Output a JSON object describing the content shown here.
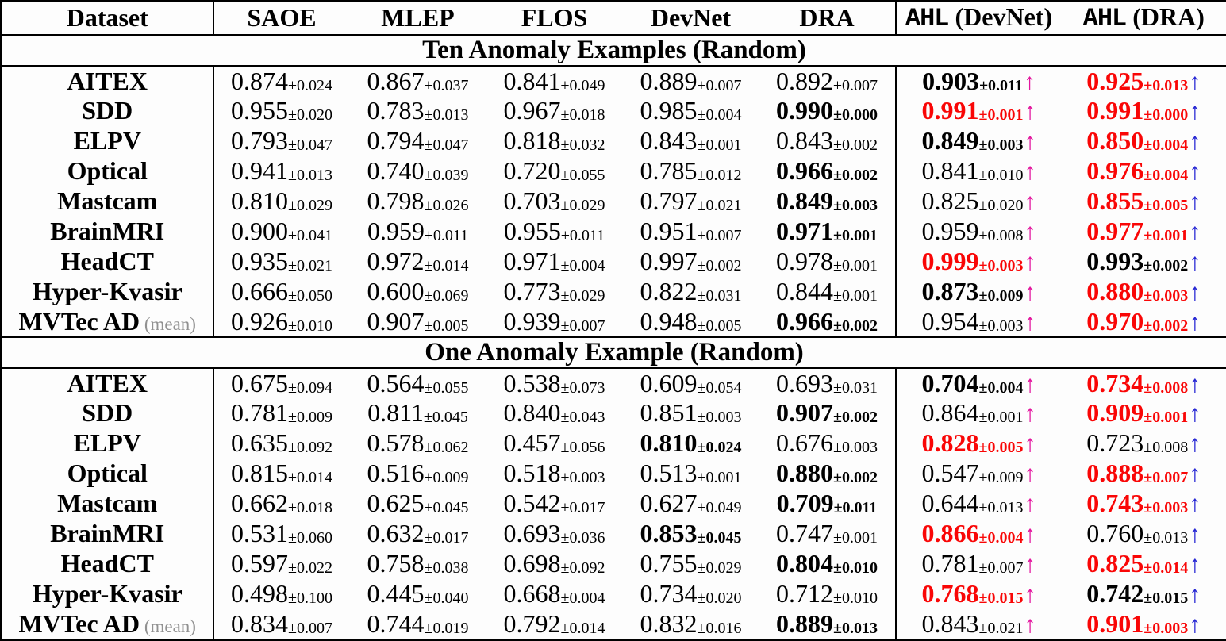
{
  "colors": {
    "red": "#f90606",
    "magenta": "#e3169e",
    "blue": "#2727d4"
  },
  "arrow_glyph": "↑",
  "header": {
    "columns": [
      {
        "label": "Dataset"
      },
      {
        "label": "SAOE"
      },
      {
        "label": "MLEP"
      },
      {
        "label": "FLOS"
      },
      {
        "label": "DevNet"
      },
      {
        "label": "DRA"
      },
      {
        "mono": "AHL",
        "label": " (DevNet)"
      },
      {
        "mono": "AHL",
        "label": " (DRA)"
      }
    ]
  },
  "sections": [
    {
      "title": "Ten Anomaly Examples (Random)",
      "rows": [
        {
          "dataset": "AITEX",
          "suffix": "",
          "cells": [
            {
              "v": "0.874",
              "pm": "±0.024",
              "s": "n",
              "a": ""
            },
            {
              "v": "0.867",
              "pm": "±0.037",
              "s": "n",
              "a": ""
            },
            {
              "v": "0.841",
              "pm": "±0.049",
              "s": "n",
              "a": ""
            },
            {
              "v": "0.889",
              "pm": "±0.007",
              "s": "n",
              "a": ""
            },
            {
              "v": "0.892",
              "pm": "±0.007",
              "s": "n",
              "a": ""
            },
            {
              "v": "0.903",
              "pm": "±0.011",
              "s": "b",
              "a": "m"
            },
            {
              "v": "0.925",
              "pm": "±0.013",
              "s": "r",
              "a": "bl"
            }
          ]
        },
        {
          "dataset": "SDD",
          "suffix": "",
          "cells": [
            {
              "v": "0.955",
              "pm": "±0.020",
              "s": "n",
              "a": ""
            },
            {
              "v": "0.783",
              "pm": "±0.013",
              "s": "n",
              "a": ""
            },
            {
              "v": "0.967",
              "pm": "±0.018",
              "s": "n",
              "a": ""
            },
            {
              "v": "0.985",
              "pm": "±0.004",
              "s": "n",
              "a": ""
            },
            {
              "v": "0.990",
              "pm": "±0.000",
              "s": "b",
              "a": ""
            },
            {
              "v": "0.991",
              "pm": "±0.001",
              "s": "r",
              "a": "m"
            },
            {
              "v": "0.991",
              "pm": "±0.000",
              "s": "r",
              "a": "bl"
            }
          ]
        },
        {
          "dataset": "ELPV",
          "suffix": "",
          "cells": [
            {
              "v": "0.793",
              "pm": "±0.047",
              "s": "n",
              "a": ""
            },
            {
              "v": "0.794",
              "pm": "±0.047",
              "s": "n",
              "a": ""
            },
            {
              "v": "0.818",
              "pm": "±0.032",
              "s": "n",
              "a": ""
            },
            {
              "v": "0.843",
              "pm": "±0.001",
              "s": "n",
              "a": ""
            },
            {
              "v": "0.843",
              "pm": "±0.002",
              "s": "n",
              "a": ""
            },
            {
              "v": "0.849",
              "pm": "±0.003",
              "s": "b",
              "a": "m"
            },
            {
              "v": "0.850",
              "pm": "±0.004",
              "s": "r",
              "a": "bl"
            }
          ]
        },
        {
          "dataset": "Optical",
          "suffix": "",
          "cells": [
            {
              "v": "0.941",
              "pm": "±0.013",
              "s": "n",
              "a": ""
            },
            {
              "v": "0.740",
              "pm": "±0.039",
              "s": "n",
              "a": ""
            },
            {
              "v": "0.720",
              "pm": "±0.055",
              "s": "n",
              "a": ""
            },
            {
              "v": "0.785",
              "pm": "±0.012",
              "s": "n",
              "a": ""
            },
            {
              "v": "0.966",
              "pm": "±0.002",
              "s": "b",
              "a": ""
            },
            {
              "v": "0.841",
              "pm": "±0.010",
              "s": "n",
              "a": "m"
            },
            {
              "v": "0.976",
              "pm": "±0.004",
              "s": "r",
              "a": "bl"
            }
          ]
        },
        {
          "dataset": "Mastcam",
          "suffix": "",
          "cells": [
            {
              "v": "0.810",
              "pm": "±0.029",
              "s": "n",
              "a": ""
            },
            {
              "v": "0.798",
              "pm": "±0.026",
              "s": "n",
              "a": ""
            },
            {
              "v": "0.703",
              "pm": "±0.029",
              "s": "n",
              "a": ""
            },
            {
              "v": "0.797",
              "pm": "±0.021",
              "s": "n",
              "a": ""
            },
            {
              "v": "0.849",
              "pm": "±0.003",
              "s": "b",
              "a": ""
            },
            {
              "v": "0.825",
              "pm": "±0.020",
              "s": "n",
              "a": "m"
            },
            {
              "v": "0.855",
              "pm": "±0.005",
              "s": "r",
              "a": "bl"
            }
          ]
        },
        {
          "dataset": "BrainMRI",
          "suffix": "",
          "cells": [
            {
              "v": "0.900",
              "pm": "±0.041",
              "s": "n",
              "a": ""
            },
            {
              "v": "0.959",
              "pm": "±0.011",
              "s": "n",
              "a": ""
            },
            {
              "v": "0.955",
              "pm": "±0.011",
              "s": "n",
              "a": ""
            },
            {
              "v": "0.951",
              "pm": "±0.007",
              "s": "n",
              "a": ""
            },
            {
              "v": "0.971",
              "pm": "±0.001",
              "s": "b",
              "a": ""
            },
            {
              "v": "0.959",
              "pm": "±0.008",
              "s": "n",
              "a": "m"
            },
            {
              "v": "0.977",
              "pm": "±0.001",
              "s": "r",
              "a": "bl"
            }
          ]
        },
        {
          "dataset": "HeadCT",
          "suffix": "",
          "cells": [
            {
              "v": "0.935",
              "pm": "±0.021",
              "s": "n",
              "a": ""
            },
            {
              "v": "0.972",
              "pm": "±0.014",
              "s": "n",
              "a": ""
            },
            {
              "v": "0.971",
              "pm": "±0.004",
              "s": "n",
              "a": ""
            },
            {
              "v": "0.997",
              "pm": "±0.002",
              "s": "n",
              "a": ""
            },
            {
              "v": "0.978",
              "pm": "±0.001",
              "s": "n",
              "a": ""
            },
            {
              "v": "0.999",
              "pm": "±0.003",
              "s": "r",
              "a": "m"
            },
            {
              "v": "0.993",
              "pm": "±0.002",
              "s": "b",
              "a": "bl"
            }
          ]
        },
        {
          "dataset": "Hyper-Kvasir",
          "suffix": "",
          "cells": [
            {
              "v": "0.666",
              "pm": "±0.050",
              "s": "n",
              "a": ""
            },
            {
              "v": "0.600",
              "pm": "±0.069",
              "s": "n",
              "a": ""
            },
            {
              "v": "0.773",
              "pm": "±0.029",
              "s": "n",
              "a": ""
            },
            {
              "v": "0.822",
              "pm": "±0.031",
              "s": "n",
              "a": ""
            },
            {
              "v": "0.844",
              "pm": "±0.001",
              "s": "n",
              "a": ""
            },
            {
              "v": "0.873",
              "pm": "±0.009",
              "s": "b",
              "a": "m"
            },
            {
              "v": "0.880",
              "pm": "±0.003",
              "s": "r",
              "a": "bl"
            }
          ]
        },
        {
          "dataset": "MVTec AD",
          "suffix": "(mean)",
          "cells": [
            {
              "v": "0.926",
              "pm": "±0.010",
              "s": "n",
              "a": ""
            },
            {
              "v": "0.907",
              "pm": "±0.005",
              "s": "n",
              "a": ""
            },
            {
              "v": "0.939",
              "pm": "±0.007",
              "s": "n",
              "a": ""
            },
            {
              "v": "0.948",
              "pm": "±0.005",
              "s": "n",
              "a": ""
            },
            {
              "v": "0.966",
              "pm": "±0.002",
              "s": "b",
              "a": ""
            },
            {
              "v": "0.954",
              "pm": "±0.003",
              "s": "n",
              "a": "m"
            },
            {
              "v": "0.970",
              "pm": "±0.002",
              "s": "r",
              "a": "bl"
            }
          ]
        }
      ]
    },
    {
      "title": "One Anomaly Example (Random)",
      "rows": [
        {
          "dataset": "AITEX",
          "suffix": "",
          "cells": [
            {
              "v": "0.675",
              "pm": "±0.094",
              "s": "n",
              "a": ""
            },
            {
              "v": "0.564",
              "pm": "±0.055",
              "s": "n",
              "a": ""
            },
            {
              "v": "0.538",
              "pm": "±0.073",
              "s": "n",
              "a": ""
            },
            {
              "v": "0.609",
              "pm": "±0.054",
              "s": "n",
              "a": ""
            },
            {
              "v": "0.693",
              "pm": "±0.031",
              "s": "n",
              "a": ""
            },
            {
              "v": "0.704",
              "pm": "±0.004",
              "s": "b",
              "a": "m"
            },
            {
              "v": "0.734",
              "pm": "±0.008",
              "s": "r",
              "a": "bl"
            }
          ]
        },
        {
          "dataset": "SDD",
          "suffix": "",
          "cells": [
            {
              "v": "0.781",
              "pm": "±0.009",
              "s": "n",
              "a": ""
            },
            {
              "v": "0.811",
              "pm": "±0.045",
              "s": "n",
              "a": ""
            },
            {
              "v": "0.840",
              "pm": "±0.043",
              "s": "n",
              "a": ""
            },
            {
              "v": "0.851",
              "pm": "±0.003",
              "s": "n",
              "a": ""
            },
            {
              "v": "0.907",
              "pm": "±0.002",
              "s": "b",
              "a": ""
            },
            {
              "v": "0.864",
              "pm": "±0.001",
              "s": "n",
              "a": "m"
            },
            {
              "v": "0.909",
              "pm": "±0.001",
              "s": "r",
              "a": "bl"
            }
          ]
        },
        {
          "dataset": "ELPV",
          "suffix": "",
          "cells": [
            {
              "v": "0.635",
              "pm": "±0.092",
              "s": "n",
              "a": ""
            },
            {
              "v": "0.578",
              "pm": "±0.062",
              "s": "n",
              "a": ""
            },
            {
              "v": "0.457",
              "pm": "±0.056",
              "s": "n",
              "a": ""
            },
            {
              "v": "0.810",
              "pm": "±0.024",
              "s": "b",
              "a": ""
            },
            {
              "v": "0.676",
              "pm": "±0.003",
              "s": "n",
              "a": ""
            },
            {
              "v": "0.828",
              "pm": "±0.005",
              "s": "r",
              "a": "m"
            },
            {
              "v": "0.723",
              "pm": "±0.008",
              "s": "n",
              "a": "bl"
            }
          ]
        },
        {
          "dataset": "Optical",
          "suffix": "",
          "cells": [
            {
              "v": "0.815",
              "pm": "±0.014",
              "s": "n",
              "a": ""
            },
            {
              "v": "0.516",
              "pm": "±0.009",
              "s": "n",
              "a": ""
            },
            {
              "v": "0.518",
              "pm": "±0.003",
              "s": "n",
              "a": ""
            },
            {
              "v": "0.513",
              "pm": "±0.001",
              "s": "n",
              "a": ""
            },
            {
              "v": "0.880",
              "pm": "±0.002",
              "s": "b",
              "a": ""
            },
            {
              "v": "0.547",
              "pm": "±0.009",
              "s": "n",
              "a": "m"
            },
            {
              "v": "0.888",
              "pm": "±0.007",
              "s": "r",
              "a": "bl"
            }
          ]
        },
        {
          "dataset": "Mastcam",
          "suffix": "",
          "cells": [
            {
              "v": "0.662",
              "pm": "±0.018",
              "s": "n",
              "a": ""
            },
            {
              "v": "0.625",
              "pm": "±0.045",
              "s": "n",
              "a": ""
            },
            {
              "v": "0.542",
              "pm": "±0.017",
              "s": "n",
              "a": ""
            },
            {
              "v": "0.627",
              "pm": "±0.049",
              "s": "n",
              "a": ""
            },
            {
              "v": "0.709",
              "pm": "±0.011",
              "s": "b",
              "a": ""
            },
            {
              "v": "0.644",
              "pm": "±0.013",
              "s": "n",
              "a": "m"
            },
            {
              "v": "0.743",
              "pm": "±0.003",
              "s": "r",
              "a": "bl"
            }
          ]
        },
        {
          "dataset": "BrainMRI",
          "suffix": "",
          "cells": [
            {
              "v": "0.531",
              "pm": "±0.060",
              "s": "n",
              "a": ""
            },
            {
              "v": "0.632",
              "pm": "±0.017",
              "s": "n",
              "a": ""
            },
            {
              "v": "0.693",
              "pm": "±0.036",
              "s": "n",
              "a": ""
            },
            {
              "v": "0.853",
              "pm": "±0.045",
              "s": "b",
              "a": ""
            },
            {
              "v": "0.747",
              "pm": "±0.001",
              "s": "n",
              "a": ""
            },
            {
              "v": "0.866",
              "pm": "±0.004",
              "s": "r",
              "a": "m"
            },
            {
              "v": "0.760",
              "pm": "±0.013",
              "s": "n",
              "a": "bl"
            }
          ]
        },
        {
          "dataset": "HeadCT",
          "suffix": "",
          "cells": [
            {
              "v": "0.597",
              "pm": "±0.022",
              "s": "n",
              "a": ""
            },
            {
              "v": "0.758",
              "pm": "±0.038",
              "s": "n",
              "a": ""
            },
            {
              "v": "0.698",
              "pm": "±0.092",
              "s": "n",
              "a": ""
            },
            {
              "v": "0.755",
              "pm": "±0.029",
              "s": "n",
              "a": ""
            },
            {
              "v": "0.804",
              "pm": "±0.010",
              "s": "b",
              "a": ""
            },
            {
              "v": "0.781",
              "pm": "±0.007",
              "s": "n",
              "a": "m"
            },
            {
              "v": "0.825",
              "pm": "±0.014",
              "s": "r",
              "a": "bl"
            }
          ]
        },
        {
          "dataset": "Hyper-Kvasir",
          "suffix": "",
          "cells": [
            {
              "v": "0.498",
              "pm": "±0.100",
              "s": "n",
              "a": ""
            },
            {
              "v": "0.445",
              "pm": "±0.040",
              "s": "n",
              "a": ""
            },
            {
              "v": "0.668",
              "pm": "±0.004",
              "s": "n",
              "a": ""
            },
            {
              "v": "0.734",
              "pm": "±0.020",
              "s": "n",
              "a": ""
            },
            {
              "v": "0.712",
              "pm": "±0.010",
              "s": "n",
              "a": ""
            },
            {
              "v": "0.768",
              "pm": "±0.015",
              "s": "r",
              "a": "m"
            },
            {
              "v": "0.742",
              "pm": "±0.015",
              "s": "b",
              "a": "bl"
            }
          ]
        },
        {
          "dataset": "MVTec AD",
          "suffix": "(mean)",
          "cells": [
            {
              "v": "0.834",
              "pm": "±0.007",
              "s": "n",
              "a": ""
            },
            {
              "v": "0.744",
              "pm": "±0.019",
              "s": "n",
              "a": ""
            },
            {
              "v": "0.792",
              "pm": "±0.014",
              "s": "n",
              "a": ""
            },
            {
              "v": "0.832",
              "pm": "±0.016",
              "s": "n",
              "a": ""
            },
            {
              "v": "0.889",
              "pm": "±0.013",
              "s": "b",
              "a": ""
            },
            {
              "v": "0.843",
              "pm": "±0.021",
              "s": "n",
              "a": "m"
            },
            {
              "v": "0.901",
              "pm": "±0.003",
              "s": "r",
              "a": "bl"
            }
          ]
        }
      ]
    }
  ]
}
